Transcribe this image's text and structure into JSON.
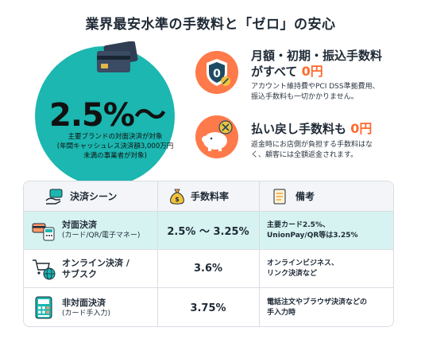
{
  "headline": "業界最安水準の手数料と「ゼロ」の安心",
  "hero": {
    "rate": "2.5%〜",
    "note_lines": [
      "主要ブランドの対面決済が対象",
      "(年間キャッシュレス決済額3,000万円",
      "未満の事業者が対象)"
    ]
  },
  "features": [
    {
      "title_line1": "月額・初期・振込手数料",
      "title_line2_prefix": "がすべて",
      "zero": "0円",
      "desc_lines": [
        "アカウント維持費やPCI DSS準拠費用、",
        "振込手数料も一切かかりません。"
      ],
      "icon": "shield-zero-icon"
    },
    {
      "title_prefix": "払い戻し手数料も",
      "zero": "0円",
      "desc_lines": [
        "返金時にお店側が負担する手数料はな",
        "く、顧客には全額返金されます。"
      ],
      "icon": "piggy-bank-icon"
    }
  ],
  "table": {
    "headers": {
      "scene": "決済シーン",
      "rate": "手数料率",
      "note": "備考"
    },
    "rows": [
      {
        "scene": "対面決済",
        "scene_sub": "(カード/QR/電子マネー)",
        "rate": "2.5% 〜 3.25%",
        "note_lines": [
          "主要カード2.5%、",
          "UnionPay/QR等は3.25%"
        ],
        "icon": "card-terminal-icon"
      },
      {
        "scene": "オンライン決済 /",
        "scene_sub": "サブスク",
        "rate": "3.6%",
        "note_lines": [
          "オンラインビジネス、",
          "リンク決済など"
        ],
        "icon": "cart-globe-icon"
      },
      {
        "scene": "非対面決済",
        "scene_sub": "(カード手入力)",
        "rate": "3.75%",
        "note_lines": [
          "電話注文やブラウザ決済などの",
          "手入力時"
        ],
        "icon": "calculator-icon"
      }
    ]
  },
  "colors": {
    "teal": "#1bb7b0",
    "orange": "#ff7a4a",
    "zero_text": "#ff6a2e",
    "highlight_row": "#d6f3f1"
  }
}
